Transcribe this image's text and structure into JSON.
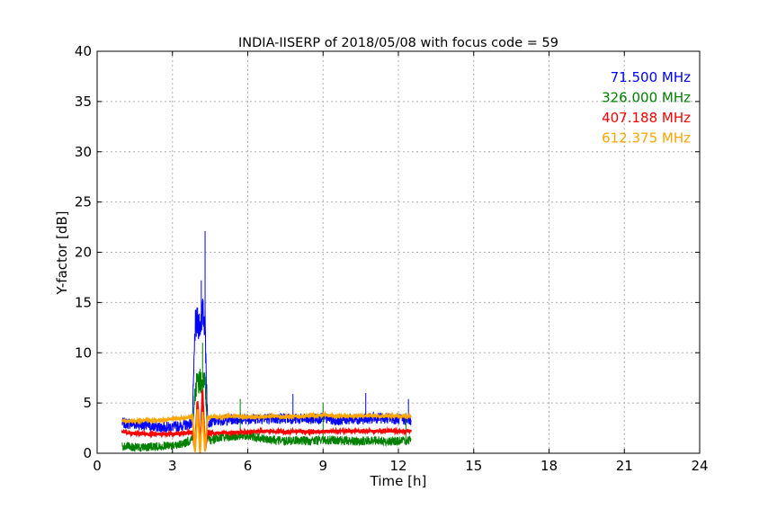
{
  "chart_data": {
    "type": "line",
    "title": "INDIA-IISERP of 2018/05/08 with focus code = 59",
    "xlabel": "Time [h]",
    "ylabel": "Y-factor [dB]",
    "xlim": [
      0,
      24
    ],
    "ylim": [
      0,
      40
    ],
    "xticks": [
      0,
      3,
      6,
      9,
      12,
      15,
      18,
      21,
      24
    ],
    "yticks": [
      0,
      5,
      10,
      15,
      20,
      25,
      30,
      35,
      40
    ],
    "grid": true,
    "legend_position": "top-right",
    "series": [
      {
        "name": "71.500 MHz",
        "color": "#0000ff",
        "x": [
          1.0,
          1.5,
          2.0,
          2.5,
          3.0,
          3.5,
          3.8,
          3.9,
          4.0,
          4.1,
          4.2,
          4.3,
          4.4,
          4.5,
          5.0,
          5.5,
          6.0,
          6.5,
          7.0,
          7.5,
          8.0,
          8.5,
          9.0,
          9.5,
          10.0,
          10.5,
          11.0,
          11.5,
          12.0,
          12.5
        ],
        "y": [
          3.0,
          2.9,
          2.7,
          2.6,
          2.6,
          2.8,
          3.0,
          12.5,
          13.0,
          12.8,
          14.0,
          12.8,
          3.2,
          3.1,
          3.3,
          3.4,
          3.4,
          3.5,
          3.4,
          3.5,
          3.4,
          3.4,
          3.5,
          3.3,
          3.4,
          3.4,
          3.5,
          3.5,
          3.4,
          3.3
        ],
        "peaks": [
          {
            "x": 4.3,
            "y": 22.1
          },
          {
            "x": 4.15,
            "y": 17.2
          },
          {
            "x": 10.7,
            "y": 6.0
          },
          {
            "x": 12.4,
            "y": 5.4
          },
          {
            "x": 7.8,
            "y": 5.9
          }
        ]
      },
      {
        "name": "326.000 MHz",
        "color": "#008000",
        "x": [
          1.0,
          1.5,
          2.0,
          2.5,
          3.0,
          3.5,
          3.8,
          3.9,
          4.0,
          4.1,
          4.2,
          4.3,
          4.4,
          4.5,
          5.0,
          5.5,
          6.0,
          6.5,
          7.0,
          7.5,
          8.0,
          8.5,
          9.0,
          9.5,
          10.0,
          10.5,
          11.0,
          11.5,
          12.0,
          12.5
        ],
        "y": [
          0.7,
          0.6,
          0.6,
          0.7,
          0.8,
          1.0,
          1.4,
          6.5,
          7.0,
          7.2,
          7.5,
          6.8,
          1.5,
          1.3,
          1.6,
          1.7,
          1.8,
          1.5,
          1.3,
          1.2,
          1.3,
          1.2,
          1.3,
          1.3,
          1.2,
          1.2,
          1.3,
          1.2,
          1.2,
          1.3
        ],
        "peaks": [
          {
            "x": 4.2,
            "y": 11.0
          },
          {
            "x": 5.7,
            "y": 5.4
          },
          {
            "x": 9.0,
            "y": 5.0
          },
          {
            "x": 12.3,
            "y": 4.0
          }
        ]
      },
      {
        "name": "407.188 MHz",
        "color": "#ff0000",
        "x": [
          1.0,
          1.5,
          2.0,
          2.5,
          3.0,
          3.5,
          3.8,
          3.9,
          4.0,
          4.1,
          4.2,
          4.3,
          4.4,
          4.5,
          5.0,
          5.5,
          6.0,
          6.5,
          7.0,
          7.5,
          8.0,
          8.5,
          9.0,
          9.5,
          10.0,
          10.5,
          11.0,
          11.5,
          12.0,
          12.5
        ],
        "y": [
          2.1,
          2.0,
          1.9,
          1.9,
          1.9,
          2.0,
          2.1,
          0.3,
          5.5,
          0.2,
          6.2,
          0.3,
          2.1,
          2.0,
          2.0,
          2.1,
          2.1,
          2.2,
          2.2,
          2.1,
          2.2,
          2.1,
          2.2,
          2.2,
          2.2,
          2.2,
          2.2,
          2.2,
          2.2,
          2.2
        ]
      },
      {
        "name": "612.375 MHz",
        "color": "#ffa500",
        "x": [
          1.0,
          1.5,
          2.0,
          2.5,
          3.0,
          3.5,
          3.8,
          3.9,
          4.0,
          4.1,
          4.2,
          4.3,
          4.4,
          4.5,
          5.0,
          5.5,
          6.0,
          6.5,
          7.0,
          7.5,
          8.0,
          8.5,
          9.0,
          9.5,
          10.0,
          10.5,
          11.0,
          11.5,
          12.0,
          12.5
        ],
        "y": [
          3.2,
          3.2,
          3.3,
          3.3,
          3.4,
          3.5,
          3.6,
          0.1,
          4.5,
          0.1,
          4.2,
          0.2,
          3.6,
          3.6,
          3.6,
          3.7,
          3.6,
          3.6,
          3.7,
          3.6,
          3.7,
          3.7,
          3.8,
          3.7,
          3.7,
          3.7,
          3.7,
          3.7,
          3.7,
          3.7
        ]
      }
    ]
  }
}
